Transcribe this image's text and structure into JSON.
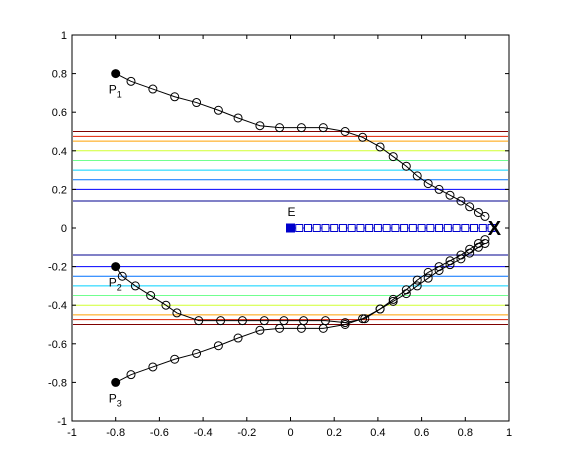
{
  "chart_data": {
    "type": "line",
    "title": "",
    "xlabel": "",
    "ylabel": "",
    "xlim": [
      -1,
      1
    ],
    "ylim": [
      -1,
      1
    ],
    "xticks": [
      -1,
      -0.8,
      -0.6,
      -0.4,
      -0.2,
      0,
      0.2,
      0.4,
      0.6,
      0.8,
      1
    ],
    "yticks": [
      -1,
      -0.8,
      -0.6,
      -0.4,
      -0.2,
      0,
      0.2,
      0.4,
      0.6,
      0.8,
      1
    ],
    "xtick_labels": [
      "-1",
      "-0.8",
      "-0.6",
      "-0.4",
      "-0.2",
      "0",
      "0.2",
      "0.4",
      "0.6",
      "0.8",
      "1"
    ],
    "ytick_labels": [
      "-1",
      "-0.8",
      "-0.6",
      "-0.4",
      "-0.2",
      "0",
      "0.2",
      "0.4",
      "0.6",
      "0.8",
      "1"
    ],
    "grid": false,
    "band_lines": {
      "x_range": [
        -1,
        1
      ],
      "upper_y": [
        0.14,
        0.2,
        0.25,
        0.3,
        0.35,
        0.4,
        0.45,
        0.475,
        0.5
      ],
      "lower_y": [
        -0.14,
        -0.2,
        -0.25,
        -0.3,
        -0.35,
        -0.4,
        -0.45,
        -0.475,
        -0.5
      ],
      "colors": [
        "#00008f",
        "#0000ff",
        "#0070ff",
        "#00d0ff",
        "#70ff90",
        "#d0ff30",
        "#ffa000",
        "#e02000",
        "#800000"
      ]
    },
    "series": [
      {
        "marker": "circle-open",
        "start_marker": "filled",
        "x": [
          -0.8,
          -0.73,
          -0.63,
          -0.53,
          -0.43,
          -0.33,
          -0.24,
          -0.14,
          -0.05,
          0.05,
          0.15,
          0.25,
          0.33,
          0.41,
          0.47,
          0.53,
          0.58,
          0.63,
          0.68,
          0.73,
          0.78,
          0.82,
          0.86,
          0.89
        ],
        "y": [
          0.8,
          0.76,
          0.72,
          0.68,
          0.65,
          0.61,
          0.57,
          0.53,
          0.52,
          0.52,
          0.52,
          0.5,
          0.47,
          0.42,
          0.37,
          0.32,
          0.27,
          0.23,
          0.2,
          0.17,
          0.14,
          0.11,
          0.08,
          0.06
        ]
      },
      {
        "marker": "circle-open",
        "start_marker": "filled",
        "x": [
          -0.8,
          -0.77,
          -0.71,
          -0.64,
          -0.57,
          -0.52,
          -0.42,
          -0.32,
          -0.22,
          -0.12,
          -0.03,
          0.06,
          0.16,
          0.25,
          0.34,
          0.41,
          0.47,
          0.53,
          0.58,
          0.63,
          0.68,
          0.73,
          0.78,
          0.82,
          0.86,
          0.89
        ],
        "y": [
          -0.2,
          -0.25,
          -0.3,
          -0.35,
          -0.4,
          -0.44,
          -0.48,
          -0.48,
          -0.48,
          -0.48,
          -0.48,
          -0.48,
          -0.48,
          -0.49,
          -0.47,
          -0.42,
          -0.38,
          -0.34,
          -0.3,
          -0.26,
          -0.22,
          -0.19,
          -0.16,
          -0.13,
          -0.1,
          -0.08
        ]
      },
      {
        "marker": "circle-open",
        "start_marker": "filled",
        "x": [
          -0.8,
          -0.73,
          -0.63,
          -0.53,
          -0.43,
          -0.33,
          -0.24,
          -0.14,
          -0.05,
          0.05,
          0.15,
          0.25,
          0.33,
          0.41,
          0.47,
          0.53,
          0.58,
          0.63,
          0.68,
          0.73,
          0.78,
          0.82,
          0.86,
          0.89
        ],
        "y": [
          -0.8,
          -0.76,
          -0.72,
          -0.68,
          -0.65,
          -0.61,
          -0.57,
          -0.53,
          -0.52,
          -0.52,
          -0.52,
          -0.5,
          -0.47,
          -0.42,
          -0.37,
          -0.32,
          -0.27,
          -0.23,
          -0.2,
          -0.17,
          -0.14,
          -0.11,
          -0.08,
          -0.06
        ]
      },
      {
        "marker": "square-open",
        "start_marker": "filled-square",
        "color": "#0000cc",
        "x": [
          0,
          0.04,
          0.08,
          0.12,
          0.16,
          0.2,
          0.24,
          0.28,
          0.32,
          0.36,
          0.4,
          0.44,
          0.48,
          0.52,
          0.56,
          0.6,
          0.64,
          0.68,
          0.72,
          0.76,
          0.8,
          0.84,
          0.88,
          0.92
        ],
        "y": [
          0,
          0,
          0,
          0,
          0,
          0,
          0,
          0,
          0,
          0,
          0,
          0,
          0,
          0,
          0,
          0,
          0,
          0,
          0,
          0,
          0,
          0,
          0,
          0
        ]
      }
    ],
    "annotations": [
      {
        "text": "P",
        "sub": "1",
        "x": -0.8,
        "y": 0.8
      },
      {
        "text": "P",
        "sub": "2",
        "x": -0.8,
        "y": -0.2
      },
      {
        "text": "P",
        "sub": "3",
        "x": -0.8,
        "y": -0.8
      },
      {
        "text": "E",
        "sub": "",
        "x": 0,
        "y": 0
      },
      {
        "text": "X",
        "sub": "",
        "x": 0.93,
        "y": 0
      }
    ]
  }
}
